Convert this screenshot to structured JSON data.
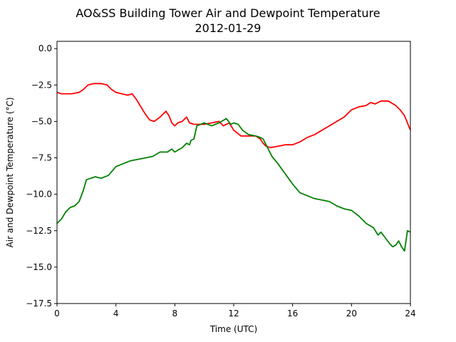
{
  "chart_data": {
    "type": "line",
    "title": "AO&SS Building Tower Air and Dewpoint Temperature",
    "subtitle": "2012-01-29",
    "xlabel": "Time (UTC)",
    "ylabel": "Air and Dewpoint Temperature (°C)",
    "xlim": [
      0,
      24
    ],
    "ylim": [
      -17.5,
      0.5
    ],
    "xticks": [
      0,
      4,
      8,
      12,
      16,
      20,
      24
    ],
    "xtick_labels": [
      "0",
      "4",
      "8",
      "12",
      "16",
      "20",
      "24"
    ],
    "yticks": [
      0.0,
      -2.5,
      -5.0,
      -7.5,
      -10.0,
      -12.5,
      -15.0,
      -17.5
    ],
    "ytick_labels": [
      "0.0",
      "−2.5",
      "−5.0",
      "−7.5",
      "−10.0",
      "−12.5",
      "−15.0",
      "−17.5"
    ],
    "grid": false,
    "legend": "none",
    "series": [
      {
        "color": "#ff0000",
        "x": [
          0,
          0.3,
          0.6,
          1.0,
          1.5,
          1.8,
          2.1,
          2.5,
          3.0,
          3.4,
          3.7,
          4.0,
          4.4,
          4.8,
          5.1,
          5.4,
          5.7,
          6.0,
          6.3,
          6.6,
          7.0,
          7.4,
          7.6,
          7.8,
          8.0,
          8.2,
          8.5,
          8.8,
          9.0,
          9.3,
          9.5,
          10.0,
          10.5,
          11.0,
          11.3,
          11.7,
          12.0,
          12.5,
          13.0,
          13.5,
          13.8,
          14.0,
          14.2,
          14.5,
          15.0,
          15.5,
          16.0,
          16.5,
          17.0,
          17.5,
          18.0,
          18.5,
          19.0,
          19.5,
          20.0,
          20.5,
          21.0,
          21.3,
          21.6,
          22.0,
          22.5,
          23.0,
          23.3,
          23.6,
          24.0
        ],
        "y": [
          -3.0,
          -3.1,
          -3.1,
          -3.1,
          -3.0,
          -2.8,
          -2.5,
          -2.4,
          -2.4,
          -2.5,
          -2.8,
          -3.0,
          -3.1,
          -3.2,
          -3.1,
          -3.5,
          -4.0,
          -4.5,
          -4.9,
          -5.0,
          -4.7,
          -4.3,
          -4.6,
          -5.1,
          -5.3,
          -5.1,
          -5.0,
          -4.7,
          -5.1,
          -5.2,
          -5.2,
          -5.2,
          -5.1,
          -5.0,
          -5.3,
          -5.1,
          -5.6,
          -6.0,
          -6.0,
          -6.0,
          -6.2,
          -6.5,
          -6.7,
          -6.8,
          -6.7,
          -6.6,
          -6.6,
          -6.4,
          -6.1,
          -5.9,
          -5.6,
          -5.3,
          -5.0,
          -4.7,
          -4.2,
          -4.0,
          -3.9,
          -3.7,
          -3.8,
          -3.6,
          -3.6,
          -3.9,
          -4.2,
          -4.6,
          -5.6
        ]
      },
      {
        "color": "#008000",
        "x": [
          0,
          0.3,
          0.6,
          0.9,
          1.2,
          1.5,
          1.8,
          2.0,
          2.3,
          2.6,
          3.0,
          3.5,
          4.0,
          4.5,
          5.0,
          5.5,
          6.0,
          6.5,
          7.0,
          7.5,
          7.8,
          8.0,
          8.5,
          8.8,
          9.0,
          9.1,
          9.3,
          9.5,
          10.0,
          10.5,
          11.0,
          11.5,
          11.8,
          12.0,
          12.3,
          12.6,
          13.0,
          13.5,
          13.8,
          14.0,
          14.3,
          14.6,
          15.0,
          15.5,
          16.0,
          16.5,
          17.0,
          17.5,
          18.0,
          18.5,
          19.0,
          19.5,
          20.0,
          20.5,
          21.0,
          21.5,
          21.8,
          22.0,
          22.3,
          22.6,
          22.8,
          23.0,
          23.2,
          23.4,
          23.6,
          23.8,
          24.0
        ],
        "y": [
          -12.0,
          -11.7,
          -11.2,
          -10.9,
          -10.8,
          -10.5,
          -9.7,
          -9.0,
          -8.9,
          -8.8,
          -8.9,
          -8.7,
          -8.1,
          -7.9,
          -7.7,
          -7.6,
          -7.5,
          -7.4,
          -7.1,
          -7.1,
          -6.9,
          -7.1,
          -6.8,
          -6.5,
          -6.6,
          -6.3,
          -6.2,
          -5.3,
          -5.1,
          -5.3,
          -5.1,
          -4.8,
          -5.2,
          -5.1,
          -5.2,
          -5.6,
          -5.9,
          -6.0,
          -6.1,
          -6.2,
          -6.8,
          -7.4,
          -7.9,
          -8.6,
          -9.3,
          -9.9,
          -10.1,
          -10.3,
          -10.4,
          -10.5,
          -10.8,
          -11.0,
          -11.1,
          -11.5,
          -12.0,
          -12.3,
          -12.8,
          -12.6,
          -13.0,
          -13.4,
          -13.6,
          -13.5,
          -13.2,
          -13.6,
          -13.9,
          -12.5,
          -12.6
        ]
      }
    ]
  }
}
